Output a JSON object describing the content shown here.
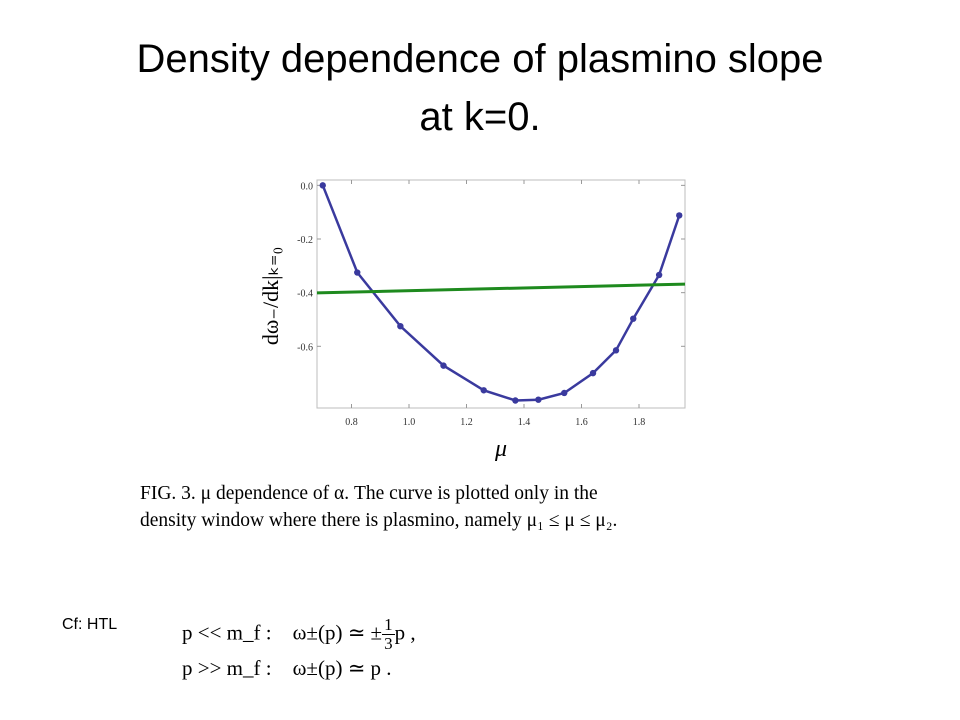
{
  "slide": {
    "title_line1": "Density dependence of plasmino slope",
    "title_line2": "at k=0."
  },
  "chart_data": {
    "type": "line",
    "xlabel": "μ",
    "ylabel": "dω₋/dk|ₖ₌₀",
    "xlim": [
      0.68,
      1.96
    ],
    "ylim": [
      -0.83,
      0.02
    ],
    "x_ticks": [
      "0.8",
      "1.0",
      "1.2",
      "1.4",
      "1.6",
      "1.8"
    ],
    "y_ticks": [
      "0.0",
      "-0.2",
      "-0.4",
      "-0.6"
    ],
    "grid": false,
    "series": [
      {
        "name": "",
        "color": "#3a3a9e",
        "markers": true,
        "x": [
          0.7,
          0.82,
          0.97,
          1.12,
          1.26,
          1.37,
          1.45,
          1.54,
          1.64,
          1.72,
          1.78,
          1.87,
          1.94
        ],
        "y": [
          0.0,
          -0.325,
          -0.525,
          -0.672,
          -0.764,
          -0.802,
          -0.799,
          -0.774,
          -0.7,
          -0.615,
          -0.497,
          -0.334,
          -0.112
        ]
      },
      {
        "name": "",
        "color": "#1e8a1e",
        "markers": false,
        "x": [
          0.68,
          1.96
        ],
        "y": [
          -0.401,
          -0.368
        ]
      }
    ]
  },
  "caption": {
    "line1": "FIG. 3.  μ dependence of α.  The curve is plotted only in the",
    "line2": "density window where there is plasmino, namely μ₁ ≤ μ ≤ μ₂."
  },
  "cf": {
    "label": "Cf: HTL",
    "eq1_condition": "p << m_f :",
    "eq1_lhs": "ω±(p) ≃ ±",
    "eq1_frac_num": "1",
    "eq1_frac_den": "3",
    "eq1_tail": "p ,",
    "eq2_condition": "p >> m_f :",
    "eq2_rhs": "ω±(p) ≃ p ."
  }
}
